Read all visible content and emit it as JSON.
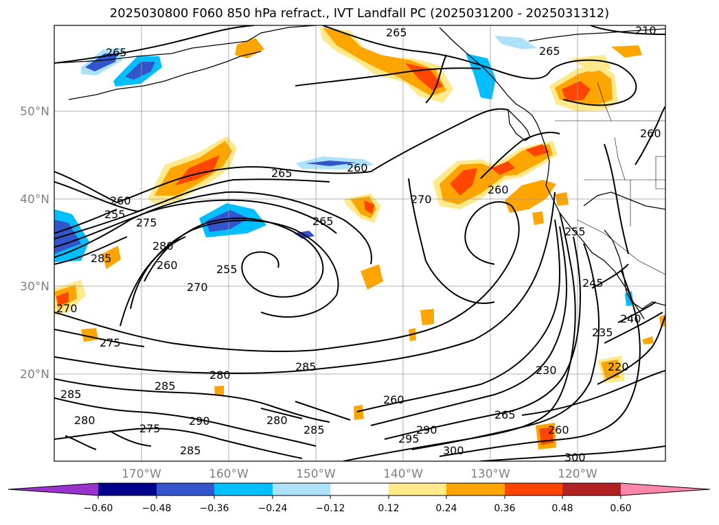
{
  "title": "2025030800 F060 850 hPa refract., IVT Landfall PC (2025031200 - 2025031312)",
  "map": {
    "lat_labels": [
      "50°N",
      "40°N",
      "30°N",
      "20°N"
    ],
    "lon_labels": [
      "170°W",
      "160°W",
      "150°W",
      "140°W",
      "130°W",
      "120°W"
    ],
    "contour_labels": [
      "265",
      "265",
      "265",
      "210",
      "260",
      "265",
      "260",
      "270",
      "260",
      "255",
      "260",
      "255",
      "275",
      "265",
      "280",
      "255",
      "260",
      "270",
      "285",
      "270",
      "275",
      "245",
      "235",
      "240",
      "285",
      "280",
      "285",
      "230",
      "220",
      "285",
      "280",
      "260",
      "290",
      "280",
      "285",
      "265",
      "275",
      "295",
      "290",
      "260",
      "285",
      "300",
      "300"
    ]
  },
  "colorbar": {
    "tick_labels": [
      "−0.60",
      "−0.48",
      "−0.36",
      "−0.24",
      "−0.12",
      "0.12",
      "0.24",
      "0.36",
      "0.48",
      "0.60"
    ],
    "colors": [
      "#9933cc",
      "#00008b",
      "#3355cc",
      "#00bfff",
      "#aee2fa",
      "#ffffff",
      "#ffe98a",
      "#ffa500",
      "#ff4500",
      "#b22222",
      "#ff88aa"
    ]
  }
}
